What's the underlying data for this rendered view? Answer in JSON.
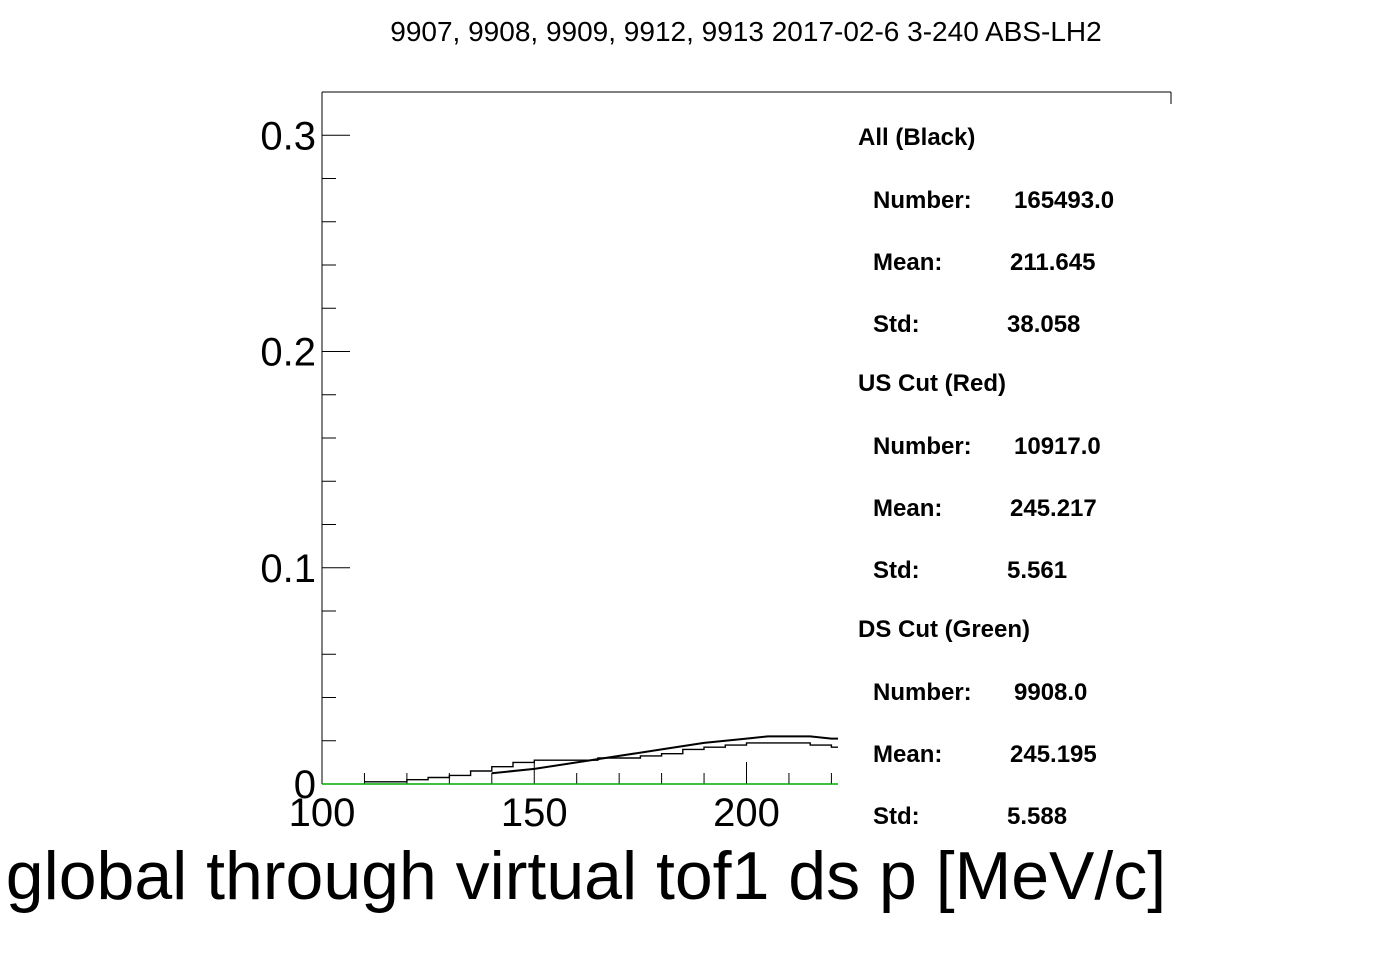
{
  "chart_data": {
    "type": "line",
    "title": "9907, 9908, 9909, 9912, 9913 2017-02-6 3-240 ABS-LH2",
    "xlabel": "global through virtual tof1 ds p [MeV/c]",
    "ylabel": "",
    "xlim": [
      100,
      300
    ],
    "ylim": [
      0,
      0.32
    ],
    "x_ticks": [
      "100",
      "150",
      "200"
    ],
    "y_ticks": [
      "0",
      "0.1",
      "0.2",
      "0.3"
    ],
    "grid": false,
    "series": [
      {
        "color": "#000000",
        "style": "step",
        "x": [
          110,
          115,
          120,
          125,
          130,
          135,
          140,
          145,
          150,
          155,
          160,
          165,
          170,
          175,
          180,
          185,
          190,
          195,
          200,
          205,
          210,
          215,
          220,
          225
        ],
        "values": [
          0.001,
          0.001,
          0.002,
          0.003,
          0.004,
          0.006,
          0.008,
          0.01,
          0.011,
          0.011,
          0.011,
          0.012,
          0.012,
          0.013,
          0.014,
          0.016,
          0.017,
          0.018,
          0.019,
          0.019,
          0.019,
          0.018,
          0.017,
          0.017
        ]
      },
      {
        "color": "#000000",
        "style": "smooth",
        "x": [
          140,
          150,
          160,
          170,
          180,
          190,
          200,
          205,
          210,
          215,
          220,
          225
        ],
        "values": [
          0.005,
          0.007,
          0.01,
          0.013,
          0.016,
          0.019,
          0.021,
          0.022,
          0.022,
          0.022,
          0.021,
          0.021
        ]
      },
      {
        "color": "#00aa00",
        "style": "line",
        "x": [
          100,
          225
        ],
        "values": [
          0.0,
          0.0
        ]
      }
    ]
  },
  "stats": [
    {
      "title": "All (Black)",
      "rows": [
        {
          "label": "Number:",
          "value": "165493.0"
        },
        {
          "label": "Mean:",
          "value": "211.645"
        },
        {
          "label": "Std:",
          "value": "38.058"
        }
      ]
    },
    {
      "title": "US Cut (Red)",
      "rows": [
        {
          "label": "Number:",
          "value": "10917.0"
        },
        {
          "label": "Mean:",
          "value": "245.217"
        },
        {
          "label": "Std:",
          "value": "5.561"
        }
      ]
    },
    {
      "title": "DS Cut (Green)",
      "rows": [
        {
          "label": "Number:",
          "value": "9908.0"
        },
        {
          "label": "Mean:",
          "value": "245.195"
        },
        {
          "label": "Std:",
          "value": "5.588"
        }
      ]
    }
  ]
}
